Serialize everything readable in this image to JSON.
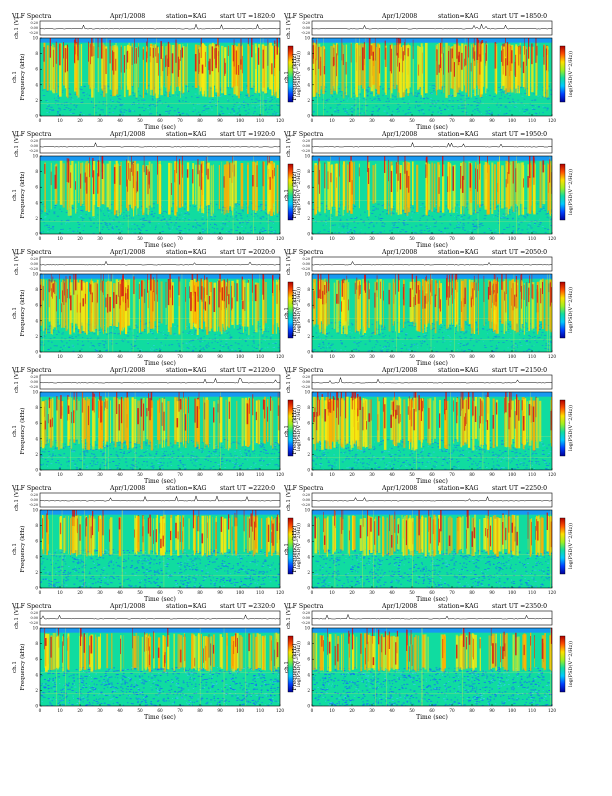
{
  "page": {
    "header_left": "VLF Spectra",
    "date": "Apr/1/2008",
    "station_label": "station=KAG",
    "start_prefix": "start  UT  ="
  },
  "labels": {
    "ch_axis": "ch.1 (V)",
    "ch_ticks": [
      "0.20",
      "0.00",
      "-0.20"
    ],
    "freq_axis": "Frequency  (kHz)",
    "freq_channel": "ch.1",
    "freq_ticks": [
      "0",
      "2",
      "4",
      "6",
      "8",
      "10"
    ],
    "time_axis": "Time  (sec)",
    "time_ticks": [
      "0",
      "10",
      "20",
      "30",
      "40",
      "50",
      "60",
      "70",
      "80",
      "90",
      "100",
      "110",
      "120"
    ],
    "colorbar_label": "log(PSD(V^2/Hz))"
  },
  "colors": {
    "background": "#10dca0",
    "band_top": "#1a8cff",
    "noise_blue": "#1466ff",
    "hot_yellow": "#f5ea10",
    "hot_red": "#d21414",
    "colorbar_stops": [
      "#000099",
      "#0040ff",
      "#00c8ff",
      "#10dca0",
      "#a0f020",
      "#ffe000",
      "#ff5000",
      "#b00000"
    ]
  },
  "chart_data": [
    {
      "type": "heatmap",
      "start_ut": "1820:0",
      "burst_intensity": 0.75,
      "noise_level": 0.3,
      "band_top_khz": 9.4,
      "band_low_khz": 4.0,
      "x_unit": "sec",
      "xlim": [
        0,
        120
      ],
      "y_unit": "kHz",
      "ylim": [
        0,
        10
      ],
      "ch_ylim": [
        -0.2,
        0.2
      ]
    },
    {
      "type": "heatmap",
      "start_ut": "1850:0",
      "burst_intensity": 0.8,
      "noise_level": 0.3,
      "band_top_khz": 9.4,
      "band_low_khz": 4.0,
      "x_unit": "sec",
      "xlim": [
        0,
        120
      ],
      "y_unit": "kHz",
      "ylim": [
        0,
        10
      ],
      "ch_ylim": [
        -0.2,
        0.2
      ]
    },
    {
      "type": "heatmap",
      "start_ut": "1920:0",
      "burst_intensity": 0.6,
      "noise_level": 0.3,
      "band_top_khz": 9.4,
      "band_low_khz": 4.0,
      "x_unit": "sec",
      "xlim": [
        0,
        120
      ],
      "y_unit": "kHz",
      "ylim": [
        0,
        10
      ],
      "ch_ylim": [
        -0.2,
        0.2
      ]
    },
    {
      "type": "heatmap",
      "start_ut": "1950:0",
      "burst_intensity": 0.55,
      "noise_level": 0.3,
      "band_top_khz": 9.4,
      "band_low_khz": 4.0,
      "x_unit": "sec",
      "xlim": [
        0,
        120
      ],
      "y_unit": "kHz",
      "ylim": [
        0,
        10
      ],
      "ch_ylim": [
        -0.2,
        0.2
      ]
    },
    {
      "type": "heatmap",
      "start_ut": "2020:0",
      "burst_intensity": 0.85,
      "noise_level": 0.25,
      "band_top_khz": 9.4,
      "band_low_khz": 4.0,
      "x_unit": "sec",
      "xlim": [
        0,
        120
      ],
      "y_unit": "kHz",
      "ylim": [
        0,
        10
      ],
      "ch_ylim": [
        -0.2,
        0.2
      ]
    },
    {
      "type": "heatmap",
      "start_ut": "2050:0",
      "burst_intensity": 0.85,
      "noise_level": 0.25,
      "band_top_khz": 9.4,
      "band_low_khz": 4.0,
      "x_unit": "sec",
      "xlim": [
        0,
        120
      ],
      "y_unit": "kHz",
      "ylim": [
        0,
        10
      ],
      "ch_ylim": [
        -0.2,
        0.2
      ]
    },
    {
      "type": "heatmap",
      "start_ut": "2120:0",
      "burst_intensity": 0.6,
      "noise_level": 0.4,
      "band_top_khz": 9.4,
      "band_low_khz": 4.0,
      "x_unit": "sec",
      "xlim": [
        0,
        120
      ],
      "y_unit": "kHz",
      "ylim": [
        0,
        10
      ],
      "ch_ylim": [
        -0.2,
        0.2
      ]
    },
    {
      "type": "heatmap",
      "start_ut": "2150:0",
      "burst_intensity": 0.75,
      "noise_level": 0.4,
      "band_top_khz": 9.4,
      "band_low_khz": 4.0,
      "x_unit": "sec",
      "xlim": [
        0,
        120
      ],
      "y_unit": "kHz",
      "ylim": [
        0,
        10
      ],
      "ch_ylim": [
        -0.2,
        0.2
      ]
    },
    {
      "type": "heatmap",
      "start_ut": "2220:0",
      "burst_intensity": 0.55,
      "noise_level": 0.6,
      "band_top_khz": 9.4,
      "band_low_khz": 5.0,
      "x_unit": "sec",
      "xlim": [
        0,
        120
      ],
      "y_unit": "kHz",
      "ylim": [
        0,
        10
      ],
      "ch_ylim": [
        -0.2,
        0.2
      ]
    },
    {
      "type": "heatmap",
      "start_ut": "2250:0",
      "burst_intensity": 0.55,
      "noise_level": 0.6,
      "band_top_khz": 9.4,
      "band_low_khz": 5.0,
      "x_unit": "sec",
      "xlim": [
        0,
        120
      ],
      "y_unit": "kHz",
      "ylim": [
        0,
        10
      ],
      "ch_ylim": [
        -0.2,
        0.2
      ]
    },
    {
      "type": "heatmap",
      "start_ut": "2320:0",
      "burst_intensity": 0.45,
      "noise_level": 0.75,
      "band_top_khz": 9.4,
      "band_low_khz": 5.0,
      "x_unit": "sec",
      "xlim": [
        0,
        120
      ],
      "y_unit": "kHz",
      "ylim": [
        0,
        10
      ],
      "ch_ylim": [
        -0.2,
        0.2
      ]
    },
    {
      "type": "heatmap",
      "start_ut": "2350:0",
      "burst_intensity": 0.45,
      "noise_level": 0.75,
      "band_top_khz": 9.4,
      "band_low_khz": 5.0,
      "x_unit": "sec",
      "xlim": [
        0,
        120
      ],
      "y_unit": "kHz",
      "ylim": [
        0,
        10
      ],
      "ch_ylim": [
        -0.2,
        0.2
      ]
    }
  ]
}
